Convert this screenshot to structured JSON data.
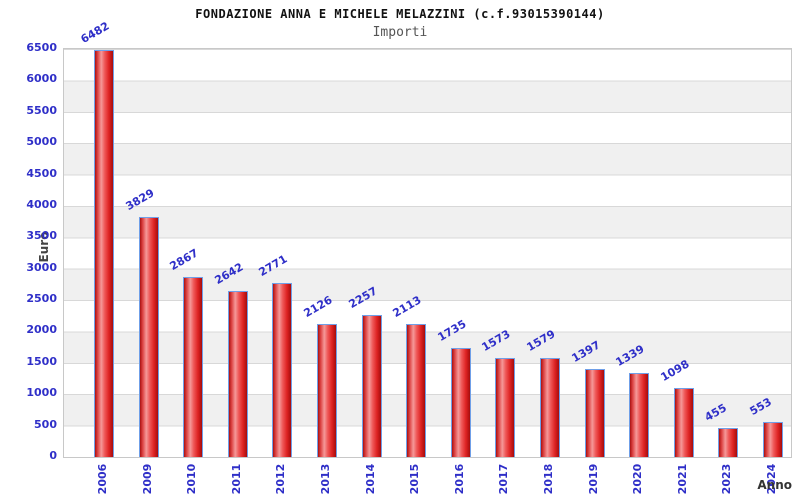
{
  "chart_data": {
    "type": "bar",
    "title": "FONDAZIONE ANNA E MICHELE MELAZZINI (c.f.93015390144)",
    "subtitle": "Importi",
    "xlabel": "Anno",
    "ylabel": "Euro",
    "categories": [
      "2006",
      "2009",
      "2010",
      "2011",
      "2012",
      "2013",
      "2014",
      "2015",
      "2016",
      "2017",
      "2018",
      "2019",
      "2020",
      "2021",
      "2023",
      "2024"
    ],
    "values": [
      6482,
      3829,
      2867,
      2642,
      2771,
      2126,
      2257,
      2113,
      1735,
      1573,
      1579,
      1397,
      1339,
      1098,
      455,
      553
    ],
    "ylim": [
      0,
      6500
    ],
    "yticks": [
      0,
      500,
      1000,
      1500,
      2000,
      2500,
      3000,
      3500,
      4000,
      4500,
      5000,
      5500,
      6000,
      6500
    ],
    "grid": "horizontal gridlines with alternating white/gray bands every 500",
    "legend_position": "none",
    "colors": {
      "bar_fill_main": "#dd2222",
      "bar_fill_highlight": "#f59898",
      "bar_fill_dark": "#aa1111",
      "bar_border": "#6f9fe8",
      "tick_label_text": "#2f2fc8",
      "value_label_text": "#2f2fc8",
      "axis_label_text": "#444444",
      "title_text": "#111111",
      "subtitle_text": "#555555",
      "band_gray": "#f0f0f0",
      "grid_line": "#d8d8d8",
      "plot_border": "#c8c8c8",
      "background": "#ffffff"
    }
  }
}
